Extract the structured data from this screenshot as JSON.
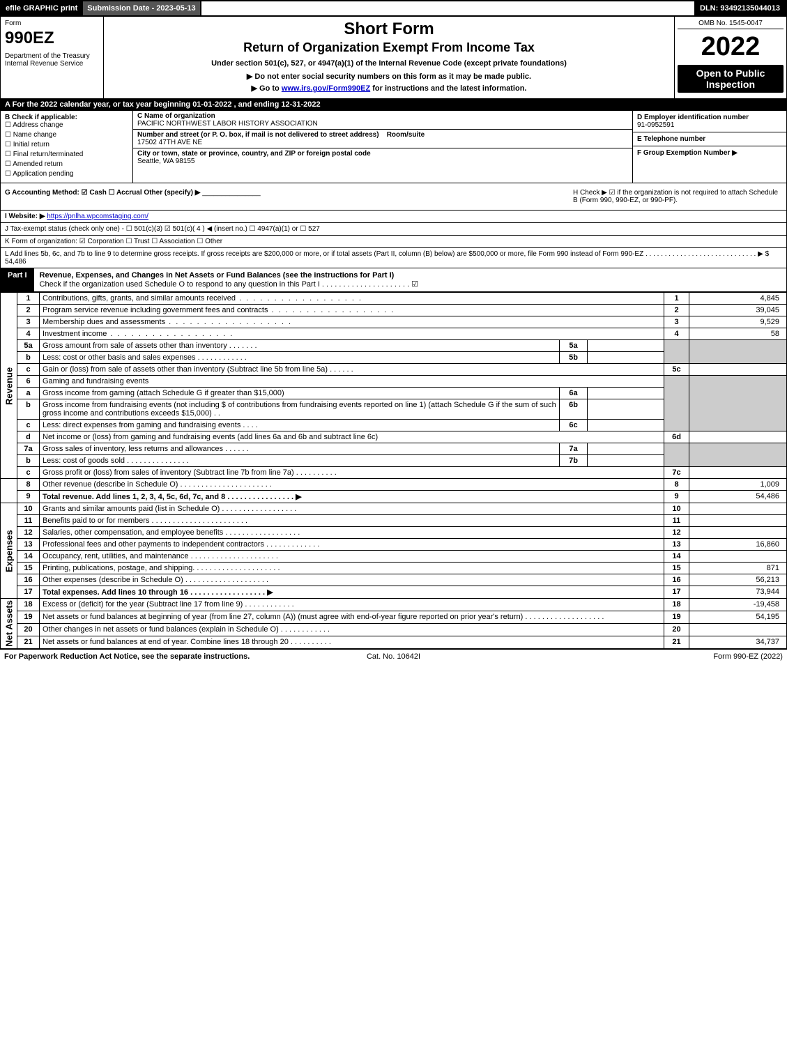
{
  "topbar": {
    "efile": "efile GRAPHIC print",
    "subdate_label": "Submission Date - 2023-05-13",
    "dln": "DLN: 93492135044013"
  },
  "header": {
    "form_word": "Form",
    "form_no": "990EZ",
    "dept": "Department of the Treasury",
    "irs": "Internal Revenue Service",
    "title1": "Short Form",
    "title2": "Return of Organization Exempt From Income Tax",
    "subtitle": "Under section 501(c), 527, or 4947(a)(1) of the Internal Revenue Code (except private foundations)",
    "note1": "▶ Do not enter social security numbers on this form as it may be made public.",
    "note2_pre": "▶ Go to ",
    "note2_link": "www.irs.gov/Form990EZ",
    "note2_post": " for instructions and the latest information.",
    "omb": "OMB No. 1545-0047",
    "year": "2022",
    "open_public": "Open to Public Inspection"
  },
  "row_a": "A  For the 2022 calendar year, or tax year beginning 01-01-2022  , and ending 12-31-2022",
  "section_b": {
    "label": "B  Check if applicable:",
    "items": [
      "Address change",
      "Name change",
      "Initial return",
      "Final return/terminated",
      "Amended return",
      "Application pending"
    ]
  },
  "section_c": {
    "name_label": "C Name of organization",
    "name": "PACIFIC NORTHWEST LABOR HISTORY ASSOCIATION",
    "addr_label": "Number and street (or P. O. box, if mail is not delivered to street address)",
    "room_label": "Room/suite",
    "addr": "17502 47TH AVE NE",
    "city_label": "City or town, state or province, country, and ZIP or foreign postal code",
    "city": "Seattle, WA  98155"
  },
  "section_d": {
    "label": "D Employer identification number",
    "value": "91-0952591"
  },
  "section_e": {
    "label": "E Telephone number",
    "value": ""
  },
  "section_f": {
    "label": "F Group Exemption Number  ▶",
    "value": ""
  },
  "row_g": {
    "label": "G Accounting Method:  ☑ Cash  ☐ Accrual   Other (specify) ▶",
    "line": "_______________"
  },
  "row_h": "H   Check ▶  ☑  if the organization is not required to attach Schedule B (Form 990, 990-EZ, or 990-PF).",
  "row_i": {
    "label": "I Website: ▶",
    "url": "https://pnlha.wpcomstaging.com/"
  },
  "row_j": "J Tax-exempt status (check only one) -  ☐ 501(c)(3)  ☑  501(c)( 4 ) ◀ (insert no.)  ☐  4947(a)(1) or  ☐  527",
  "row_k": "K Form of organization:   ☑ Corporation   ☐ Trust   ☐ Association   ☐ Other",
  "row_l": {
    "text": "L Add lines 5b, 6c, and 7b to line 9 to determine gross receipts. If gross receipts are $200,000 or more, or if total assets (Part II, column (B) below) are $500,000 or more, file Form 990 instead of Form 990-EZ  .  .  .  .  .  .  .  .  .  .  .  .  .  .  .  .  .  .  .  .  .  .  .  .  .  .  .  .  .  ▶ $",
    "value": "54,486"
  },
  "part1": {
    "tab": "Part I",
    "title": "Revenue, Expenses, and Changes in Net Assets or Fund Balances (see the instructions for Part I)",
    "check_text": "Check if the organization used Schedule O to respond to any question in this Part I  .  .  .  .  .  .  .  .  .  .  .  .  .  .  .  .  .  .  .  .  .  ☑"
  },
  "rot_labels": {
    "revenue": "Revenue",
    "expenses": "Expenses",
    "netassets": "Net Assets"
  },
  "lines": {
    "l1": {
      "n": "1",
      "d": "Contributions, gifts, grants, and similar amounts received",
      "out": "1",
      "v": "4,845"
    },
    "l2": {
      "n": "2",
      "d": "Program service revenue including government fees and contracts",
      "out": "2",
      "v": "39,045"
    },
    "l3": {
      "n": "3",
      "d": "Membership dues and assessments",
      "out": "3",
      "v": "9,529"
    },
    "l4": {
      "n": "4",
      "d": "Investment income",
      "out": "4",
      "v": "58"
    },
    "l5a": {
      "n": "5a",
      "d": "Gross amount from sale of assets other than inventory  .  .  .  .  .  .  .",
      "sub": "5a"
    },
    "l5b": {
      "n": "b",
      "d": "Less: cost or other basis and sales expenses  .  .  .  .  .  .  .  .  .  .  .  .",
      "sub": "5b"
    },
    "l5c": {
      "n": "c",
      "d": "Gain or (loss) from sale of assets other than inventory (Subtract line 5b from line 5a)  .  .  .  .  .  .",
      "out": "5c"
    },
    "l6": {
      "n": "6",
      "d": "Gaming and fundraising events"
    },
    "l6a": {
      "n": "a",
      "d": "Gross income from gaming (attach Schedule G if greater than $15,000)",
      "sub": "6a"
    },
    "l6b": {
      "n": "b",
      "d": "Gross income from fundraising events (not including $                       of contributions from fundraising events reported on line 1) (attach Schedule G if the sum of such gross income and contributions exceeds $15,000)   .  .",
      "sub": "6b"
    },
    "l6c": {
      "n": "c",
      "d": "Less: direct expenses from gaming and fundraising events   .  .  .  .",
      "sub": "6c"
    },
    "l6d": {
      "n": "d",
      "d": "Net income or (loss) from gaming and fundraising events (add lines 6a and 6b and subtract line 6c)",
      "out": "6d"
    },
    "l7a": {
      "n": "7a",
      "d": "Gross sales of inventory, less returns and allowances  .  .  .  .  .  .",
      "sub": "7a"
    },
    "l7b": {
      "n": "b",
      "d": "Less: cost of goods sold        .  .  .  .  .  .  .  .  .  .  .  .  .  .  .",
      "sub": "7b"
    },
    "l7c": {
      "n": "c",
      "d": "Gross profit or (loss) from sales of inventory (Subtract line 7b from line 7a)  .  .  .  .  .  .  .  .  .  .",
      "out": "7c"
    },
    "l8": {
      "n": "8",
      "d": "Other revenue (describe in Schedule O)  .  .  .  .  .  .  .  .  .  .  .  .  .  .  .  .  .  .  .  .  .  .",
      "out": "8",
      "v": "1,009"
    },
    "l9": {
      "n": "9",
      "d": "Total revenue. Add lines 1, 2, 3, 4, 5c, 6d, 7c, and 8   .  .  .  .  .  .  .  .  .  .  .  .  .  .  .  .   ▶",
      "out": "9",
      "v": "54,486",
      "bold": true
    },
    "l10": {
      "n": "10",
      "d": "Grants and similar amounts paid (list in Schedule O)  .  .  .  .  .  .  .  .  .  .  .  .  .  .  .  .  .  .",
      "out": "10"
    },
    "l11": {
      "n": "11",
      "d": "Benefits paid to or for members     .  .  .  .  .  .  .  .  .  .  .  .  .  .  .  .  .  .  .  .  .  .  .",
      "out": "11"
    },
    "l12": {
      "n": "12",
      "d": "Salaries, other compensation, and employee benefits .  .  .  .  .  .  .  .  .  .  .  .  .  .  .  .  .  .",
      "out": "12"
    },
    "l13": {
      "n": "13",
      "d": "Professional fees and other payments to independent contractors .  .  .  .  .  .  .  .  .  .  .  .  .",
      "out": "13",
      "v": "16,860"
    },
    "l14": {
      "n": "14",
      "d": "Occupancy, rent, utilities, and maintenance .  .  .  .  .  .  .  .  .  .  .  .  .  .  .  .  .  .  .  .  .",
      "out": "14"
    },
    "l15": {
      "n": "15",
      "d": "Printing, publications, postage, and shipping.  .  .  .  .  .  .  .  .  .  .  .  .  .  .  .  .  .  .  .  .",
      "out": "15",
      "v": "871"
    },
    "l16": {
      "n": "16",
      "d": "Other expenses (describe in Schedule O)     .  .  .  .  .  .  .  .  .  .  .  .  .  .  .  .  .  .  .  .",
      "out": "16",
      "v": "56,213"
    },
    "l17": {
      "n": "17",
      "d": "Total expenses. Add lines 10 through 16     .  .  .  .  .  .  .  .  .  .  .  .  .  .  .  .  .  .   ▶",
      "out": "17",
      "v": "73,944",
      "bold": true
    },
    "l18": {
      "n": "18",
      "d": "Excess or (deficit) for the year (Subtract line 17 from line 9)       .  .  .  .  .  .  .  .  .  .  .  .",
      "out": "18",
      "v": "-19,458"
    },
    "l19": {
      "n": "19",
      "d": "Net assets or fund balances at beginning of year (from line 27, column (A)) (must agree with end-of-year figure reported on prior year's return) .  .  .  .  .  .  .  .  .  .  .  .  .  .  .  .  .  .  .",
      "out": "19",
      "v": "54,195"
    },
    "l20": {
      "n": "20",
      "d": "Other changes in net assets or fund balances (explain in Schedule O) .  .  .  .  .  .  .  .  .  .  .  .",
      "out": "20"
    },
    "l21": {
      "n": "21",
      "d": "Net assets or fund balances at end of year. Combine lines 18 through 20 .  .  .  .  .  .  .  .  .  .",
      "out": "21",
      "v": "34,737"
    }
  },
  "footer": {
    "left": "For Paperwork Reduction Act Notice, see the separate instructions.",
    "center": "Cat. No. 10642I",
    "right": "Form 990-EZ (2022)"
  }
}
